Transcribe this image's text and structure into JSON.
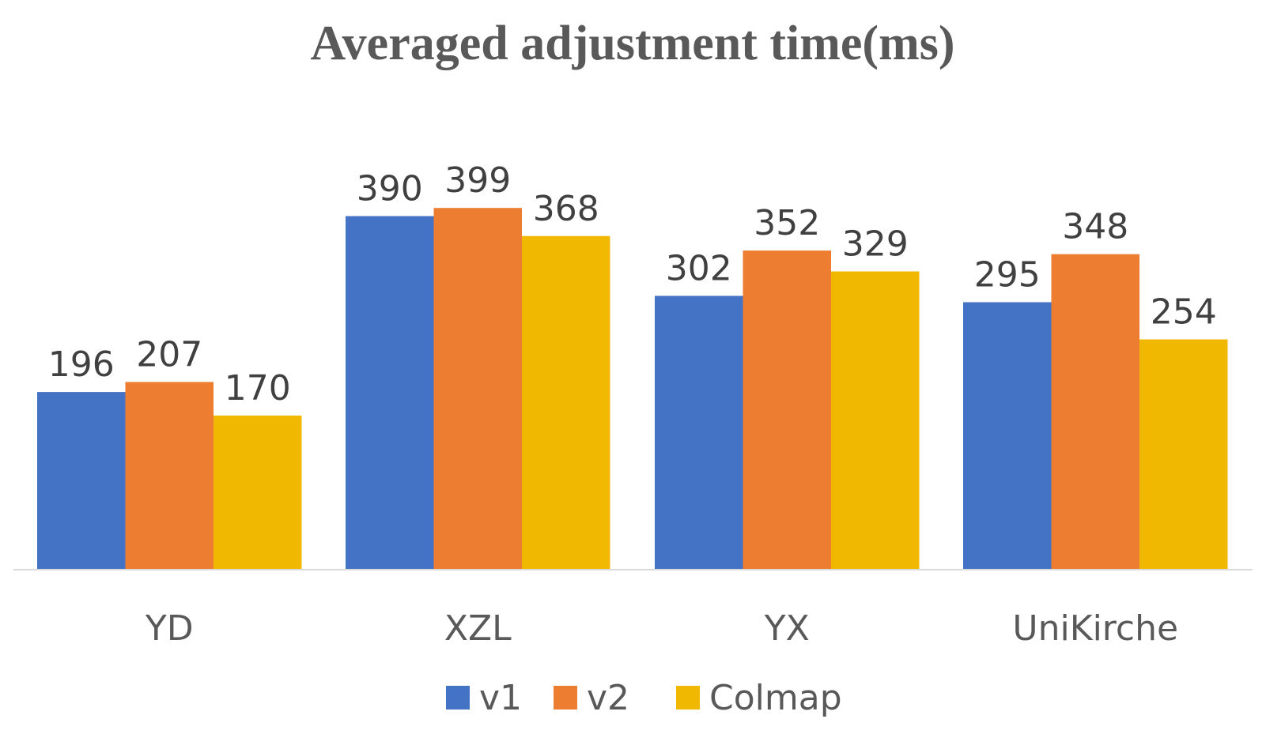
{
  "chart_data": {
    "type": "bar",
    "title": "Averaged adjustment time(ms)",
    "xlabel": "",
    "ylabel": "",
    "categories": [
      "YD",
      "XZL",
      "YX",
      "UniKirche"
    ],
    "series": [
      {
        "name": "v1",
        "color": "#4472C4",
        "values": [
          196,
          390,
          302,
          295
        ]
      },
      {
        "name": "v2",
        "color": "#ED7D31",
        "values": [
          207,
          399,
          352,
          348
        ]
      },
      {
        "name": "Colmap",
        "color": "#F0B800",
        "values": [
          170,
          368,
          329,
          254
        ]
      }
    ],
    "ylim": [
      0,
      450
    ],
    "grid": false,
    "legend_position": "bottom",
    "data_labels": true
  }
}
